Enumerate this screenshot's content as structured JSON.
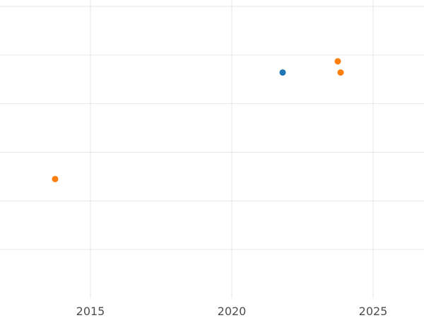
{
  "chart_data": {
    "type": "scatter",
    "title": "",
    "xlabel": "",
    "ylabel": "",
    "xlim": [
      2011.8,
      2026.8
    ],
    "ylim": [
      0,
      6
    ],
    "x_ticks": [
      {
        "label": "2015",
        "year": 2015
      },
      {
        "label": "2020",
        "year": 2020
      },
      {
        "label": "2025",
        "year": 2025
      }
    ],
    "y_ticks": [],
    "y_gridlines": [
      1,
      2,
      3,
      4,
      5,
      6
    ],
    "grid": true,
    "legend": "none",
    "colors": {
      "grid": "#e6e6e6",
      "tick_label": "#4d4d4d",
      "background": "#ffffff",
      "series_blue": "#1f77b4",
      "series_orange": "#ff7f0e"
    },
    "series": [
      {
        "name": "blue",
        "color": "#1f77b4",
        "points": [
          {
            "x": 2021.8,
            "y": 4.64
          }
        ]
      },
      {
        "name": "orange",
        "color": "#ff7f0e",
        "points": [
          {
            "x": 2013.75,
            "y": 2.45
          },
          {
            "x": 2023.75,
            "y": 4.87
          },
          {
            "x": 2023.85,
            "y": 4.64
          }
        ]
      }
    ]
  }
}
